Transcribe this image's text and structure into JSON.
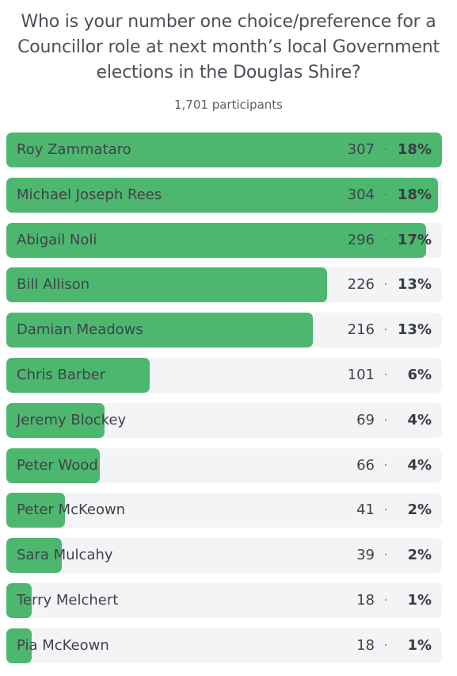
{
  "poll": {
    "question": "Who is your number one choice/preference for a Councillor role at next month’s local Government elections in the Douglas Shire?",
    "participants": "1,701 participants",
    "separator": "·",
    "accent_color": "#4db76f",
    "track_color": "#f2f4f6",
    "options": [
      {
        "label": "Roy Zammataro",
        "votes": "307",
        "percent": "18%",
        "fill": 1.0
      },
      {
        "label": "Michael Joseph Rees",
        "votes": "304",
        "percent": "18%",
        "fill": 0.99
      },
      {
        "label": "Abigail Noli",
        "votes": "296",
        "percent": "17%",
        "fill": 0.964
      },
      {
        "label": "Bill Allison",
        "votes": "226",
        "percent": "13%",
        "fill": 0.736
      },
      {
        "label": "Damian Meadows",
        "votes": "216",
        "percent": "13%",
        "fill": 0.704
      },
      {
        "label": "Chris Barber",
        "votes": "101",
        "percent": "6%",
        "fill": 0.329
      },
      {
        "label": "Jeremy Blockey",
        "votes": "69",
        "percent": "4%",
        "fill": 0.225
      },
      {
        "label": "Peter Wood",
        "votes": "66",
        "percent": "4%",
        "fill": 0.215
      },
      {
        "label": "Peter McKeown",
        "votes": "41",
        "percent": "2%",
        "fill": 0.134
      },
      {
        "label": "Sara Mulcahy",
        "votes": "39",
        "percent": "2%",
        "fill": 0.127
      },
      {
        "label": "Terry Melchert",
        "votes": "18",
        "percent": "1%",
        "fill": 0.059
      },
      {
        "label": "Pia McKeown",
        "votes": "18",
        "percent": "1%",
        "fill": 0.059
      }
    ]
  }
}
